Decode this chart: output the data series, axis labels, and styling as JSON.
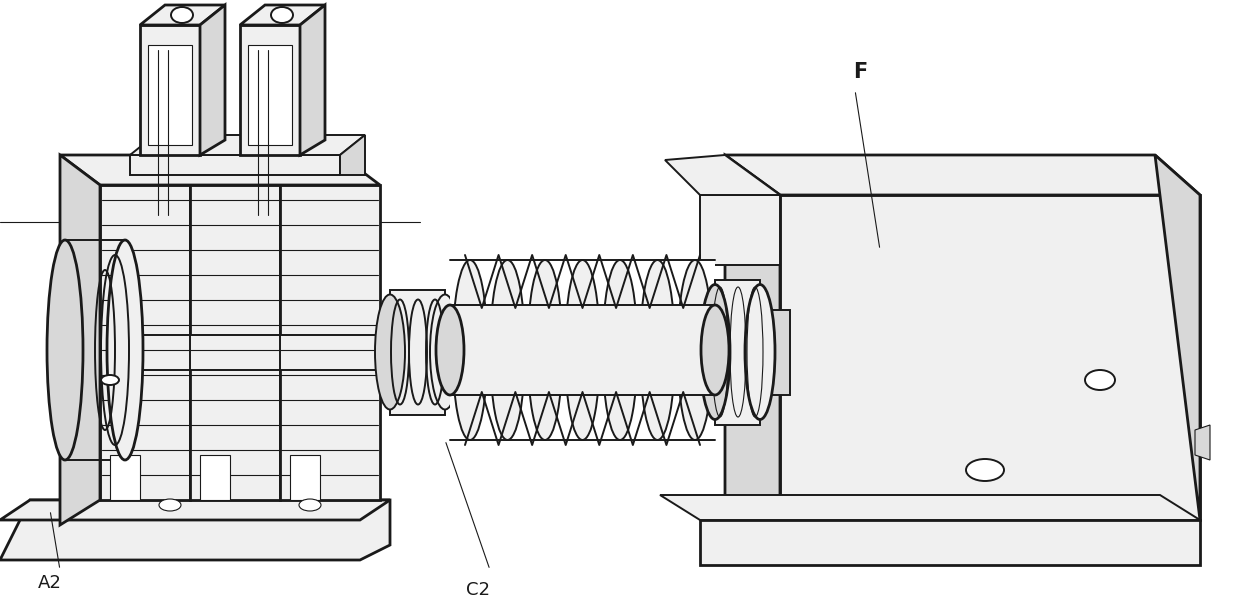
{
  "title": "",
  "background_color": "#ffffff",
  "label_A2": "A2",
  "label_C2": "C2",
  "label_F": "F",
  "fig_width": 12.39,
  "fig_height": 6.15,
  "dpi": 100,
  "lc": "#1a1a1a",
  "lw_thick": 2.0,
  "lw_mid": 1.4,
  "lw_thin": 0.8,
  "fc_white": "#ffffff",
  "fc_light": "#f0f0f0",
  "fc_mid": "#d8d8d8",
  "fc_dark": "#b8b8b8"
}
